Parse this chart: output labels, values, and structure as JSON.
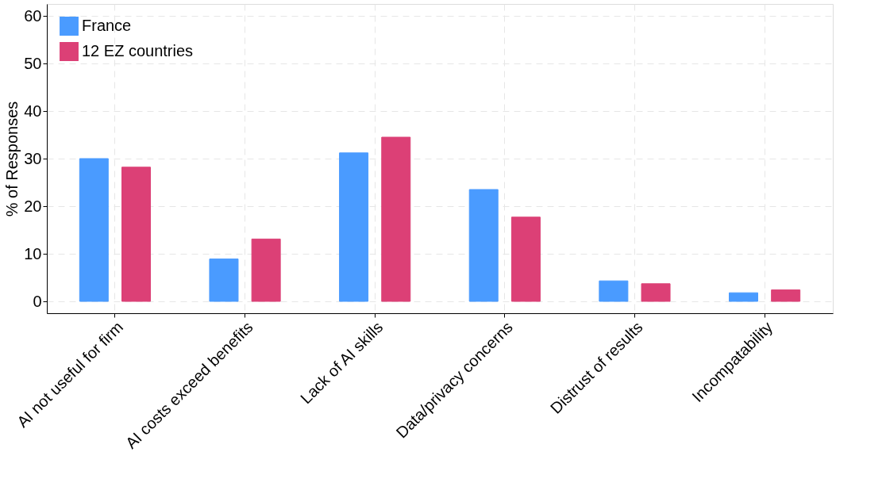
{
  "chart_data": {
    "type": "bar",
    "ylabel": "% of Responses",
    "categories": [
      "AI not useful for firm",
      "AI costs exceed benefits",
      "Lack of AI skills",
      "Data/privacy concerns",
      "Distrust of results",
      "Incompatability"
    ],
    "series": [
      {
        "name": "France",
        "color": "#4a9bff",
        "values": [
          30.0,
          8.9,
          31.2,
          23.5,
          4.3,
          1.8
        ]
      },
      {
        "name": "12 EZ countries",
        "color": "#dc4076",
        "values": [
          28.2,
          13.1,
          34.5,
          17.7,
          3.7,
          2.4
        ]
      }
    ],
    "ylim": [
      -2.5,
      62.5
    ],
    "yticks": [
      0,
      10,
      20,
      30,
      40,
      50,
      60
    ],
    "grid": true,
    "legend": "top left"
  }
}
